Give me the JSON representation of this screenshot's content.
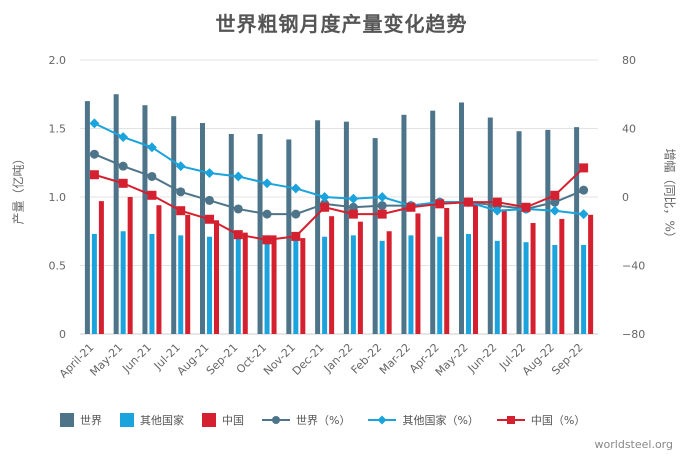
{
  "chart_data": {
    "type": "bar",
    "title": "世界粗钢月度产量变化趋势",
    "ylabel_left": "产量（亿吨）",
    "ylabel_right": "增幅（同比，%）",
    "ylim_left": [
      0,
      2.0
    ],
    "ylim_right": [
      -80,
      80
    ],
    "yticks_left": [
      "0",
      "0.5",
      "1.0",
      "1.5",
      "2.0"
    ],
    "yticks_right": [
      "−80",
      "−40",
      "0",
      "40",
      "80"
    ],
    "categories": [
      "April-21",
      "May-21",
      "Jun-21",
      "Jul-21",
      "Aug-21",
      "Sep-21",
      "Oct-21",
      "Nov-21",
      "Dec-21",
      "Jan-22",
      "Feb-22",
      "Mar-22",
      "Apr-22",
      "May-22",
      "Jun-22",
      "Jul-22",
      "Aug-22",
      "Sep-22"
    ],
    "bar_series": [
      {
        "name": "世界",
        "color": "#4e7489",
        "values": [
          1.7,
          1.75,
          1.67,
          1.59,
          1.54,
          1.46,
          1.46,
          1.42,
          1.56,
          1.55,
          1.43,
          1.6,
          1.63,
          1.69,
          1.58,
          1.48,
          1.49,
          1.51
        ]
      },
      {
        "name": "其他国家",
        "color": "#1aa3dc",
        "values": [
          0.73,
          0.75,
          0.73,
          0.72,
          0.71,
          0.71,
          0.71,
          0.71,
          0.71,
          0.72,
          0.68,
          0.72,
          0.71,
          0.73,
          0.68,
          0.67,
          0.65,
          0.65
        ]
      },
      {
        "name": "中国",
        "color": "#d4202f",
        "values": [
          0.97,
          1.0,
          0.94,
          0.87,
          0.83,
          0.74,
          0.72,
          0.7,
          0.86,
          0.82,
          0.75,
          0.88,
          0.92,
          0.96,
          0.91,
          0.81,
          0.84,
          0.87
        ]
      }
    ],
    "line_series": [
      {
        "name": "世界（%）",
        "color": "#4e7489",
        "marker": "circle",
        "values": [
          25,
          18,
          12,
          3,
          -2,
          -7,
          -10,
          -10,
          -4,
          -6,
          -5,
          -5,
          -3,
          -3,
          -5,
          -7,
          -3,
          4
        ]
      },
      {
        "name": "其他国家（%）",
        "color": "#1aa3dc",
        "marker": "diamond",
        "values": [
          43,
          35,
          29,
          18,
          14,
          12,
          8,
          5,
          0,
          -1,
          0,
          -5,
          -3,
          -3,
          -8,
          -7,
          -8,
          -10
        ]
      },
      {
        "name": "中国（%）",
        "color": "#d4202f",
        "marker": "square",
        "values": [
          13,
          8,
          1,
          -8,
          -13,
          -22,
          -25,
          -23,
          -6,
          -10,
          -10,
          -6,
          -4,
          -3,
          -3,
          -6,
          1,
          17
        ]
      }
    ],
    "grid": true,
    "legend_position": "bottom"
  },
  "source_label": "worldsteel.org"
}
